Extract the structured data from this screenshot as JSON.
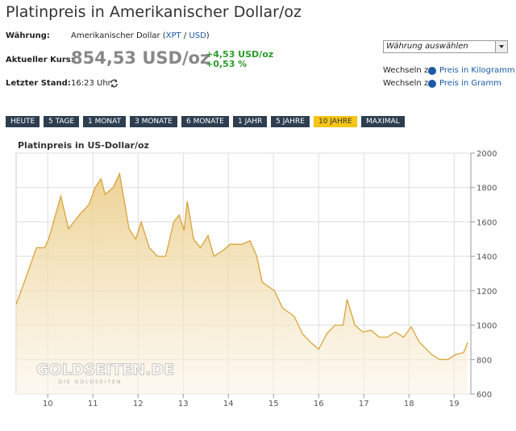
{
  "header": {
    "title": "Platinpreis in Amerikanischer Dollar/oz"
  },
  "info": {
    "currency_label": "Währung:",
    "currency_parts": [
      "Amerikanischer Dollar (",
      "XPT",
      " / ",
      "USD",
      ")"
    ],
    "price_label": "Aktueller Kurs:",
    "price": "854,53 USD/oz",
    "change_abs": "+4,53 USD/oz",
    "change_pct": "+0,53 %",
    "time_label": "Letzter Stand:",
    "time": "16:23 Uhr"
  },
  "side": {
    "select": "Währung auswählen",
    "links": [
      {
        "prefix": "Wechseln zu",
        "text": "Preis in Kilogramm"
      },
      {
        "prefix": "Wechseln zu",
        "text": "Preis in Gramm"
      }
    ]
  },
  "tabs": {
    "items": [
      "HEUTE",
      "5 TAGE",
      "1 MONAT",
      "3 MONATE",
      "6 MONATE",
      "1 JAHR",
      "5 JAHRE",
      "10 JAHRE",
      "MAXIMAL"
    ],
    "active": 7
  },
  "chart_data": {
    "type": "area",
    "title": "Platinpreis in US-Dollar/oz",
    "watermark": "GOLDSEITEN.DE",
    "watermark_sub": "DIE GOLDSEITEN",
    "color": "#d9a43a",
    "x": [
      2009.3,
      2009.48,
      2009.75,
      2009.93,
      2010.02,
      2010.29,
      2010.46,
      2010.73,
      2010.91,
      2011.05,
      2011.18,
      2011.27,
      2011.45,
      2011.59,
      2011.71,
      2011.8,
      2011.95,
      2012.07,
      2012.25,
      2012.43,
      2012.61,
      2012.79,
      2012.91,
      2013.02,
      2013.09,
      2013.23,
      2013.38,
      2013.55,
      2013.68,
      2013.86,
      2014.04,
      2014.3,
      2014.48,
      2014.63,
      2014.75,
      2015.02,
      2015.2,
      2015.46,
      2015.64,
      2015.82,
      2016.0,
      2016.18,
      2016.36,
      2016.54,
      2016.63,
      2016.8,
      2016.98,
      2017.16,
      2017.34,
      2017.52,
      2017.7,
      2017.88,
      2018.05,
      2018.23,
      2018.5,
      2018.68,
      2018.86,
      2019.04,
      2019.21,
      2019.3
    ],
    "values": [
      1120,
      1250,
      1450,
      1450,
      1500,
      1750,
      1560,
      1650,
      1700,
      1800,
      1850,
      1760,
      1800,
      1880,
      1700,
      1560,
      1500,
      1600,
      1450,
      1400,
      1400,
      1600,
      1640,
      1550,
      1720,
      1500,
      1450,
      1520,
      1400,
      1430,
      1470,
      1470,
      1490,
      1400,
      1250,
      1200,
      1100,
      1050,
      950,
      900,
      860,
      950,
      1000,
      1000,
      1150,
      1000,
      960,
      970,
      930,
      930,
      960,
      930,
      990,
      900,
      830,
      800,
      800,
      830,
      840,
      900
    ],
    "xlim": [
      2009.3,
      2019.37
    ],
    "xticks": [
      {
        "value": 2010,
        "label": "10"
      },
      {
        "value": 2011,
        "label": "11"
      },
      {
        "value": 2012,
        "label": "12"
      },
      {
        "value": 2013,
        "label": "13"
      },
      {
        "value": 2014,
        "label": "14"
      },
      {
        "value": 2015,
        "label": "15"
      },
      {
        "value": 2016,
        "label": "16"
      },
      {
        "value": 2017,
        "label": "17"
      },
      {
        "value": 2018,
        "label": "18"
      },
      {
        "value": 2019,
        "label": "19"
      }
    ],
    "ylim": [
      600,
      2000
    ],
    "yticks": [
      600,
      800,
      1000,
      1200,
      1400,
      1600,
      1800,
      2000
    ],
    "grid": true
  }
}
